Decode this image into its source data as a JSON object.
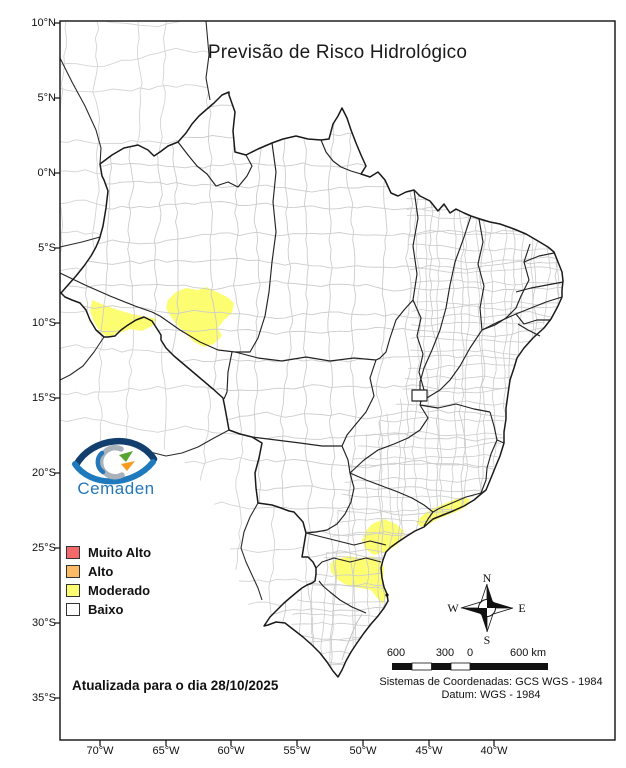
{
  "title": "Previsão de Risco Hidrológico",
  "logo": {
    "text": "Cemaden",
    "color": "#2577b9"
  },
  "legend": {
    "items": [
      {
        "label": "Muito Alto",
        "color": "#f4696b"
      },
      {
        "label": "Alto",
        "color": "#fbba63"
      },
      {
        "label": "Moderado",
        "color": "#fdfd72"
      },
      {
        "label": "Baixo",
        "color": "#ffffff"
      }
    ]
  },
  "updated_text": "Atualizada para o dia 28/10/2025",
  "compass": {
    "n": "N",
    "s": "S",
    "e": "E",
    "w": "W"
  },
  "scalebar": {
    "labels": [
      "600",
      "300",
      "0",
      "600 km"
    ]
  },
  "coords_line1": "Sistemas de Coordenadas: GCS WGS - 1984",
  "coords_line2": "Datum: WGS - 1984",
  "axes": {
    "lat": [
      "10°N",
      "5°N",
      "0°N",
      "5°S",
      "10°S",
      "15°S",
      "20°S",
      "25°S",
      "30°S",
      "35°S"
    ],
    "lon": [
      "70°W",
      "65°W",
      "60°W",
      "55°W",
      "50°W",
      "45°W",
      "40°W"
    ]
  },
  "map": {
    "risk_fill": "#fdfd72",
    "line_colors": {
      "state": "#222222",
      "municipality": "#cccccc",
      "neighbor_mesh": "#d4d4d4"
    }
  }
}
